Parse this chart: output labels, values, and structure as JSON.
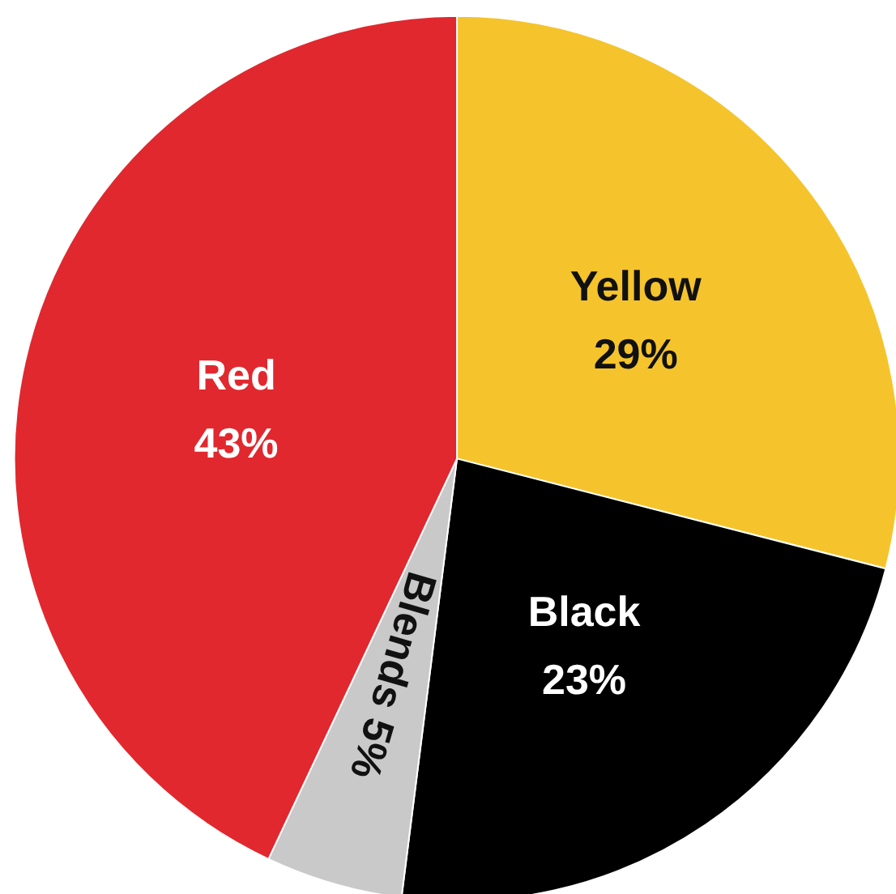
{
  "chart_data": {
    "type": "pie",
    "categories": [
      "Yellow",
      "Black",
      "Blends",
      "Red"
    ],
    "values": [
      29,
      23,
      5,
      43
    ],
    "colors": [
      "#f5c42c",
      "#000000",
      "#c9c9c9",
      "#e1282e"
    ],
    "value_labels": [
      "29%",
      "23%",
      "5%",
      "43%"
    ]
  }
}
